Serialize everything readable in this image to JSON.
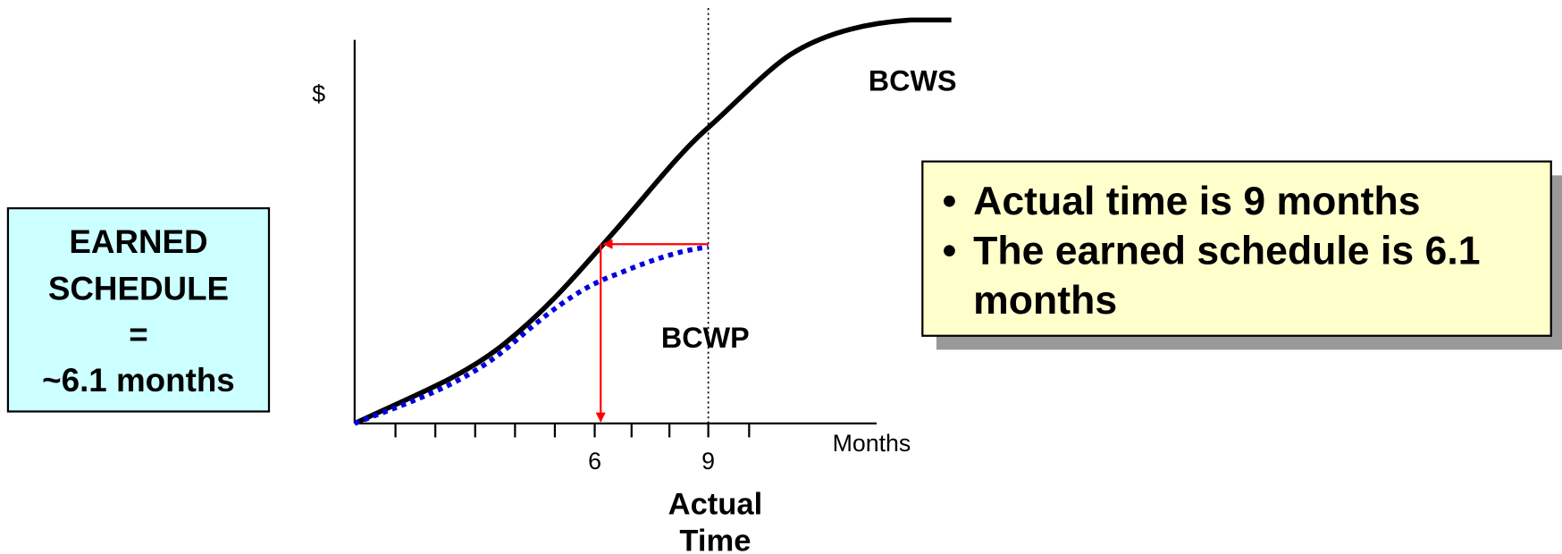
{
  "y_axis_label": "$",
  "x_axis_label": "Months",
  "x_tick_labels": [
    "6",
    "9"
  ],
  "x_caption": [
    "Actual",
    "Time"
  ],
  "curve_labels": {
    "planned": "BCWS",
    "earned": "BCWP"
  },
  "left_box": {
    "lines": [
      "EARNED",
      "SCHEDULE",
      "=",
      "~6.1 months"
    ]
  },
  "right_box": {
    "bullets": [
      [
        "Actual time is 9 months"
      ],
      [
        "The earned schedule is 6.1",
        "months"
      ]
    ]
  }
}
